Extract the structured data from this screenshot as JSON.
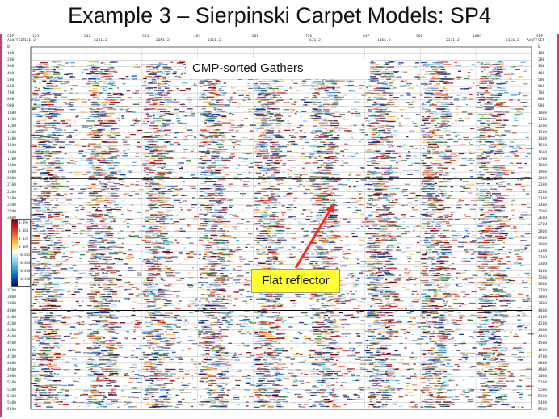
{
  "slide": {
    "title": "Example 3 – Sierpinski Carpet Models: SP4",
    "callout_gathers": "CMP-sorted Gathers",
    "callout_reflector": "Flat reflector"
  },
  "header": {
    "left_label": "CDP",
    "left_sub": "AXOFFSET",
    "right_label": "CDP",
    "right_sub": "AXOFFSET",
    "cdp": [
      "123",
      "242",
      "363",
      "484",
      "605",
      "726",
      "847",
      "968",
      "1089"
    ],
    "offset": [
      "156.2",
      "2231.2",
      "2056.2",
      "2311.2",
      "631.2",
      "1456.2",
      "2331.2",
      "3156.2"
    ]
  },
  "depth_axis": {
    "left_ticks": [
      "0",
      "100",
      "200",
      "300",
      "400",
      "500",
      "600",
      "700",
      "800",
      "900",
      "1000",
      "1100",
      "1200",
      "1300",
      "1400",
      "1500",
      "1600",
      "1700",
      "1800",
      "1900",
      "2000",
      "2100",
      "2200",
      "2300",
      "2400",
      "2500",
      "2600",
      "3700",
      "3800",
      "3900",
      "4000",
      "4100",
      "4200",
      "4300",
      "4400",
      "4500",
      "4600",
      "4700",
      "4800",
      "4900",
      "5000",
      "5100",
      "5200",
      "5300",
      "5400",
      "5500"
    ],
    "right_ticks": [
      "0",
      "100",
      "200",
      "300",
      "400",
      "500",
      "600",
      "700",
      "800",
      "900",
      "1000",
      "1100",
      "1200",
      "1300",
      "1400",
      "1500",
      "1600",
      "1700",
      "1800",
      "1900",
      "2000",
      "2100",
      "2200",
      "2300",
      "2400",
      "2500",
      "2600",
      "2700",
      "2800",
      "2900",
      "3000",
      "3100",
      "3200",
      "3300",
      "3400",
      "3500",
      "3600",
      "3700",
      "3800",
      "3900",
      "4000",
      "4100",
      "4200",
      "4300",
      "4400",
      "4500",
      "4600",
      "4700",
      "4800",
      "4900",
      "5000",
      "5100",
      "5200",
      "5300",
      "5400",
      "5500"
    ]
  },
  "colorbar": {
    "labels": [
      "0.096",
      "0.064",
      "0.032",
      "0.000",
      "-0.032",
      "-0.064",
      "-0.096",
      "-0.128"
    ]
  },
  "colors": {
    "sidebar": "#c8406a",
    "arrow": "#ff2a1a",
    "callout_bg": "#ffff33"
  }
}
